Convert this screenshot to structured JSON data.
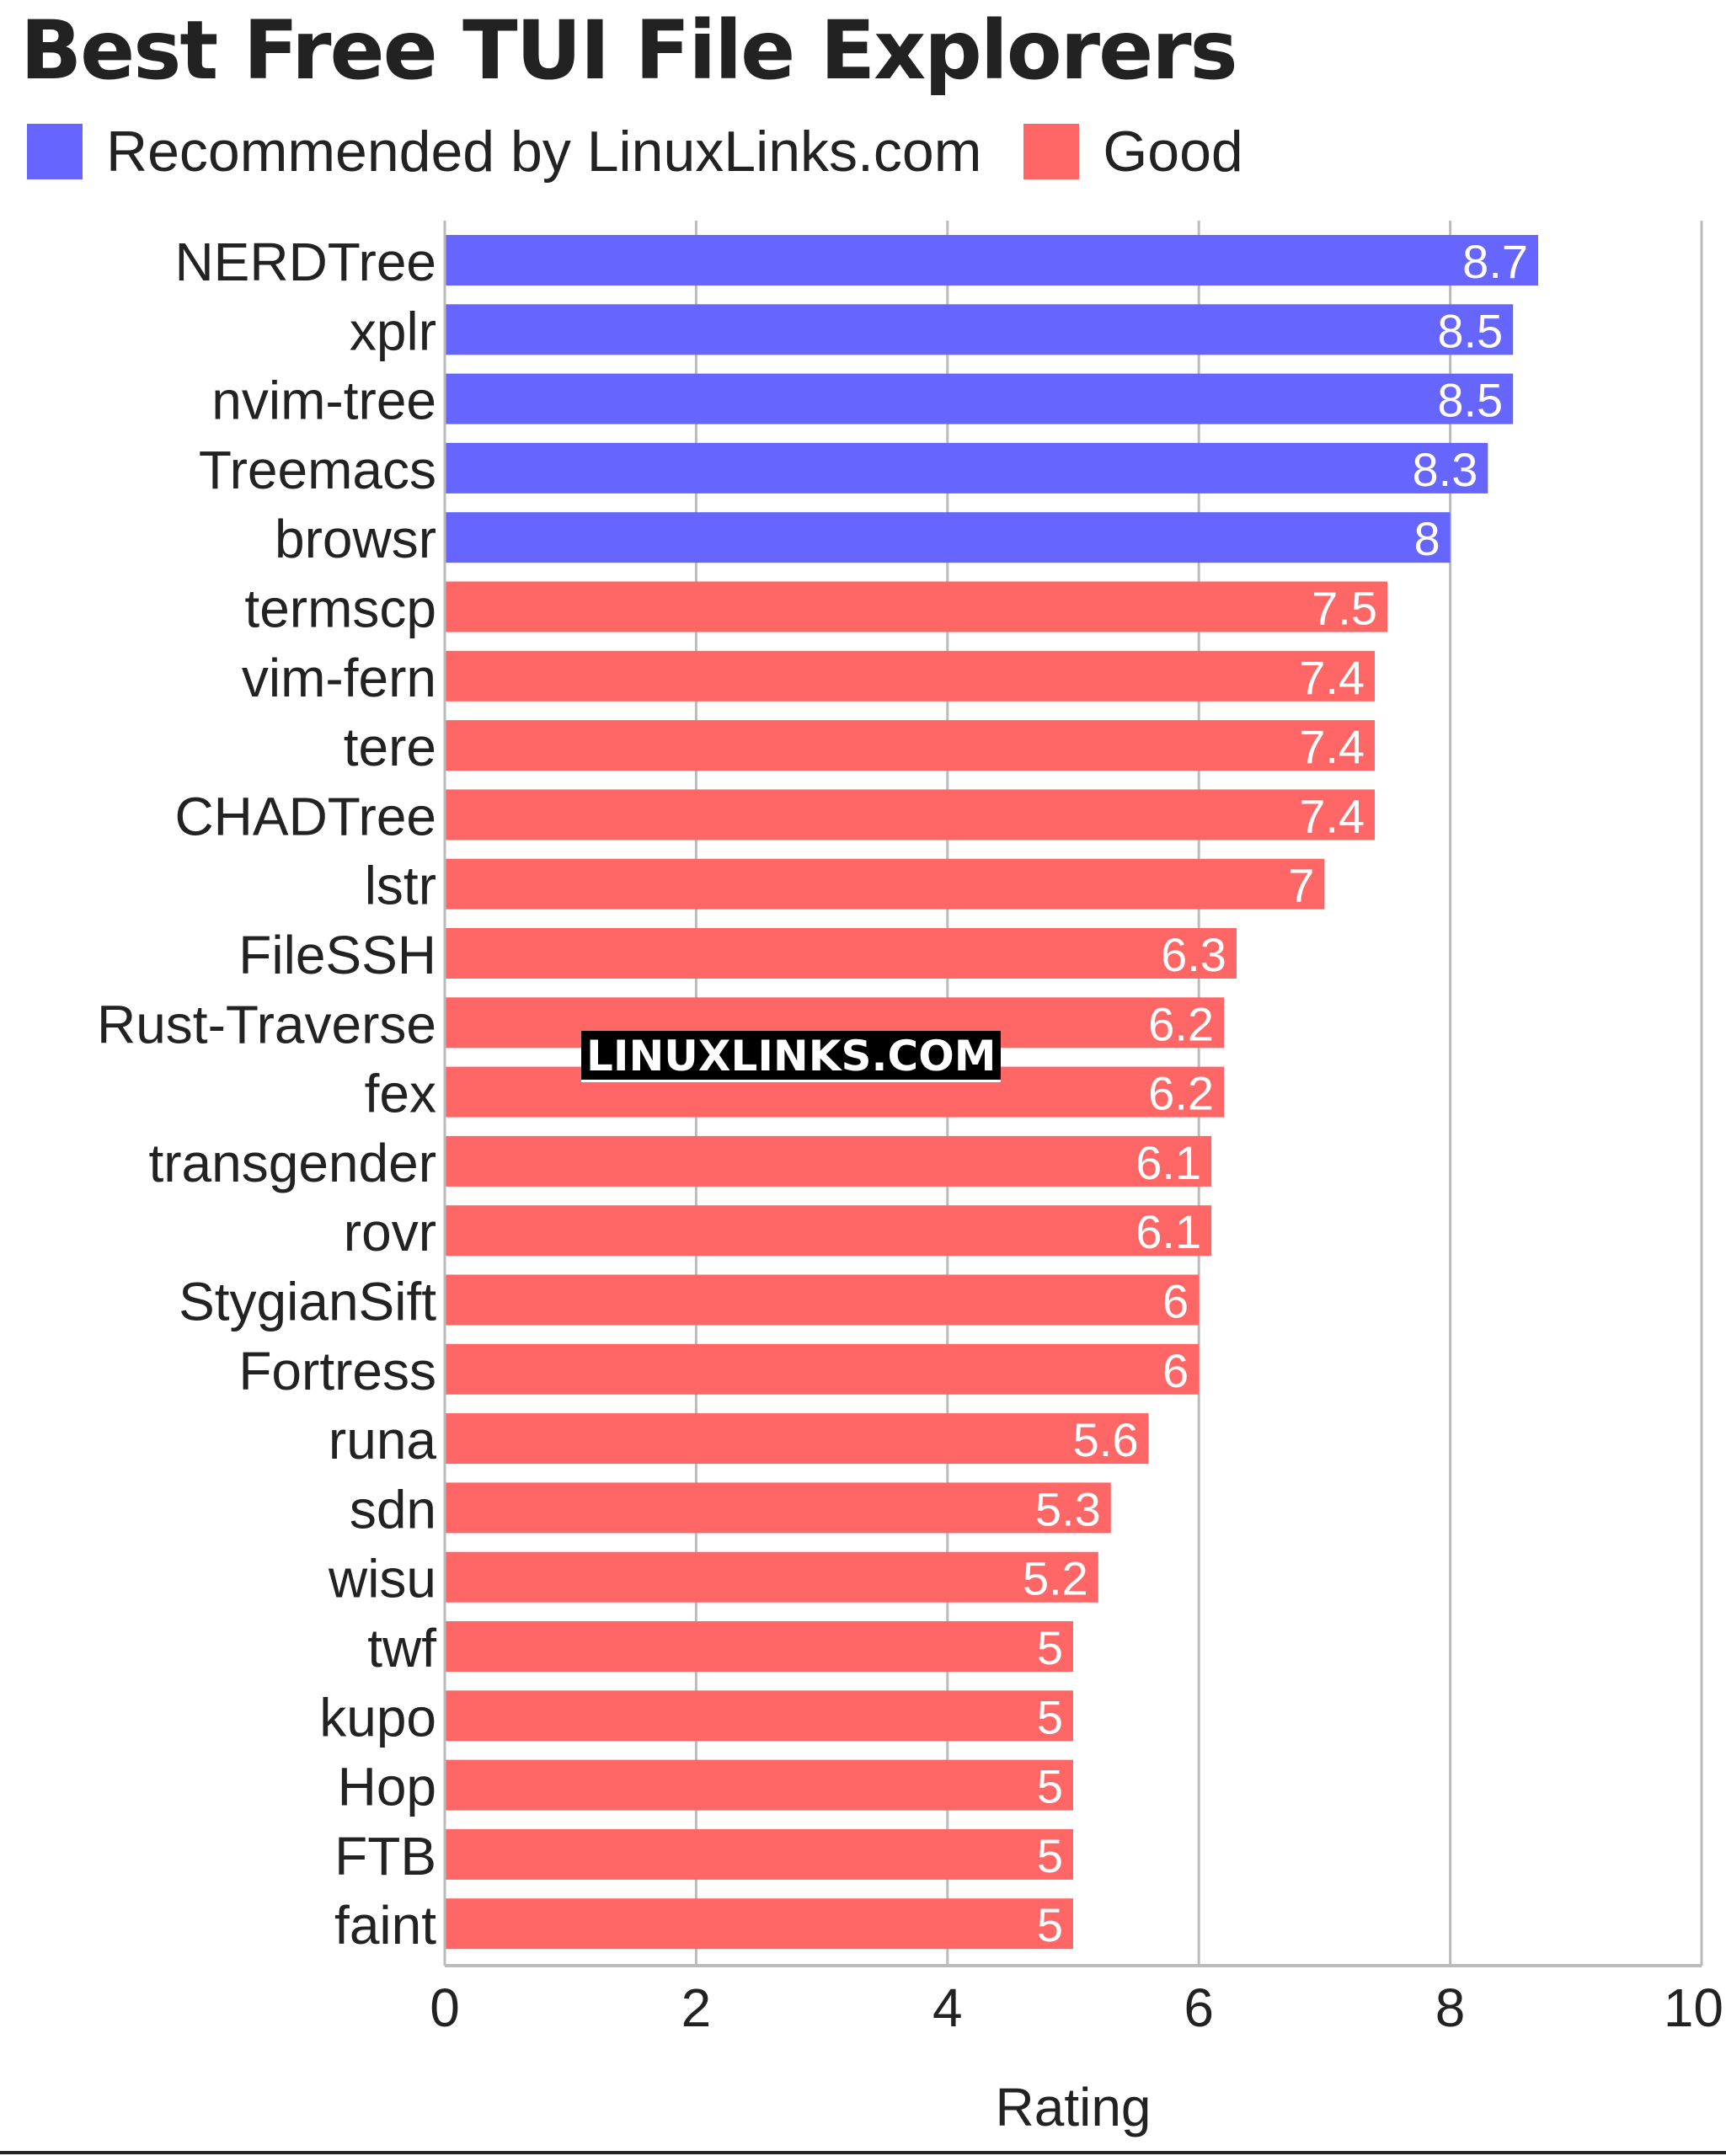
{
  "title": "Best Free TUI File Explorers",
  "legend": [
    {
      "label": "Recommended by LinuxLinks.com",
      "color": "#6666ff"
    },
    {
      "label": "Good",
      "color": "#ff6666"
    }
  ],
  "watermark": "LINUXLINKS.COM",
  "chart_data": {
    "type": "bar",
    "orientation": "horizontal",
    "title": "Best Free TUI File Explorers",
    "xlabel": "Rating",
    "ylabel": "",
    "xlim": [
      0,
      10
    ],
    "xticks": [
      0,
      2,
      4,
      6,
      8,
      10
    ],
    "grid": true,
    "legend_position": "top-left",
    "categories": [
      "NERDTree",
      "xplr",
      "nvim-tree",
      "Treemacs",
      "browsr",
      "termscp",
      "vim-fern",
      "tere",
      "CHADTree",
      "lstr",
      "FileSSH",
      "Rust-Traverse",
      "fex",
      "transgender",
      "rovr",
      "StygianSift",
      "Fortress",
      "runa",
      "sdn",
      "wisu",
      "twf",
      "kupo",
      "Hop",
      "FTB",
      "faint"
    ],
    "values": [
      8.7,
      8.5,
      8.5,
      8.3,
      8,
      7.5,
      7.4,
      7.4,
      7.4,
      7,
      6.3,
      6.2,
      6.2,
      6.1,
      6.1,
      6,
      6,
      5.6,
      5.3,
      5.2,
      5,
      5,
      5,
      5,
      5
    ],
    "groups": [
      "Recommended by LinuxLinks.com",
      "Recommended by LinuxLinks.com",
      "Recommended by LinuxLinks.com",
      "Recommended by LinuxLinks.com",
      "Recommended by LinuxLinks.com",
      "Good",
      "Good",
      "Good",
      "Good",
      "Good",
      "Good",
      "Good",
      "Good",
      "Good",
      "Good",
      "Good",
      "Good",
      "Good",
      "Good",
      "Good",
      "Good",
      "Good",
      "Good",
      "Good",
      "Good"
    ],
    "bar_label_color": "#ffffff",
    "grid_color": "#bbbbbb",
    "text_color": "#222222"
  }
}
